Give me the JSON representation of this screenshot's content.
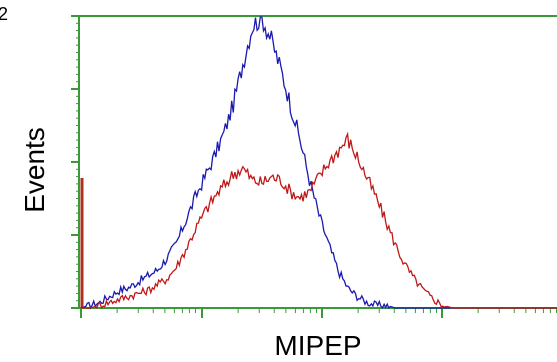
{
  "chart_data": {
    "type": "line",
    "title": "",
    "xlabel": "MIPEP",
    "ylabel": "Events",
    "y_tick_labels": [
      "2"
    ],
    "x_scale": "log",
    "grid": false,
    "colors": {
      "frame": "#3a9a3a",
      "blue": "#1a1ab0",
      "red": "#c01818",
      "spike": "#b03020"
    },
    "series": [
      {
        "color": "#1a1ab0",
        "x": [
          0.0,
          0.02,
          0.04,
          0.06,
          0.08,
          0.1,
          0.12,
          0.14,
          0.16,
          0.18,
          0.2,
          0.22,
          0.24,
          0.26,
          0.28,
          0.3,
          0.32,
          0.34,
          0.36,
          0.38,
          0.4,
          0.42,
          0.44,
          0.46,
          0.48,
          0.5,
          0.52,
          0.54,
          0.56,
          0.58,
          0.6,
          0.62,
          0.64,
          0.66,
          0.68,
          0.7,
          0.72,
          0.74,
          0.76,
          0.8,
          0.85,
          0.9,
          0.95,
          1.0
        ],
        "y": [
          0.0,
          0.01,
          0.02,
          0.04,
          0.06,
          0.07,
          0.09,
          0.11,
          0.13,
          0.17,
          0.22,
          0.3,
          0.38,
          0.45,
          0.52,
          0.6,
          0.7,
          0.84,
          0.97,
          1.0,
          0.92,
          0.82,
          0.7,
          0.58,
          0.44,
          0.32,
          0.22,
          0.13,
          0.07,
          0.04,
          0.02,
          0.01,
          0.01,
          0.0,
          0.0,
          0.0,
          0.0,
          0.0,
          0.0,
          0.0,
          0.0,
          0.0,
          0.0,
          0.0
        ]
      },
      {
        "color": "#c01818",
        "x": [
          0.0,
          0.02,
          0.04,
          0.06,
          0.08,
          0.1,
          0.12,
          0.14,
          0.16,
          0.18,
          0.2,
          0.22,
          0.24,
          0.26,
          0.28,
          0.3,
          0.32,
          0.34,
          0.36,
          0.38,
          0.4,
          0.42,
          0.44,
          0.46,
          0.48,
          0.5,
          0.52,
          0.54,
          0.56,
          0.58,
          0.6,
          0.62,
          0.64,
          0.66,
          0.68,
          0.7,
          0.72,
          0.74,
          0.76,
          0.78,
          0.8,
          0.85,
          0.9,
          0.95,
          1.0
        ],
        "y": [
          0.0,
          0.0,
          0.01,
          0.02,
          0.03,
          0.04,
          0.05,
          0.06,
          0.08,
          0.1,
          0.14,
          0.2,
          0.27,
          0.33,
          0.38,
          0.42,
          0.46,
          0.48,
          0.44,
          0.43,
          0.45,
          0.44,
          0.4,
          0.38,
          0.4,
          0.45,
          0.5,
          0.54,
          0.58,
          0.52,
          0.45,
          0.38,
          0.3,
          0.22,
          0.15,
          0.1,
          0.06,
          0.03,
          0.01,
          0.0,
          0.0,
          0.0,
          0.0,
          0.0,
          0.0
        ]
      }
    ],
    "ylim": [
      0,
      1.0
    ],
    "xlim": [
      0,
      1.0
    ]
  }
}
